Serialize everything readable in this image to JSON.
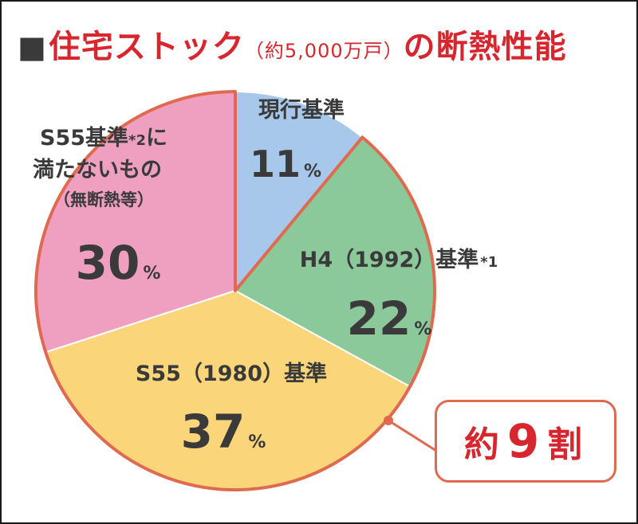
{
  "title": {
    "square": "■",
    "main": "住宅ストック",
    "sub": "（約5,000万戸）",
    "tail": "の断熱性能"
  },
  "chart_data": {
    "type": "pie",
    "title": "住宅ストック（約5,000万戸）の断熱性能",
    "unit": "%",
    "slices": [
      {
        "name": "現行基準",
        "value": 11,
        "color": "#a7c8ea"
      },
      {
        "name": "H4（1992）基準",
        "note": "*1",
        "value": 22,
        "color": "#8cc99a"
      },
      {
        "name": "S55（1980）基準",
        "value": 37,
        "color": "#fad57a"
      },
      {
        "name": "S55基準*2に満たないもの",
        "sub": "（無断熱等）",
        "value": 30,
        "color": "#efa0c1"
      }
    ],
    "outline_color": "#e06a50"
  },
  "labels": {
    "current": {
      "name": "現行基準",
      "value": "11",
      "sign": "%"
    },
    "h4": {
      "name": "H4（1992）基準",
      "note": "*1",
      "value": "22",
      "sign": "%"
    },
    "s55": {
      "name": "S55（1980）基準",
      "value": "37",
      "sign": "%"
    },
    "below": {
      "line1": "S55基準",
      "note": "*2",
      "line1b": "に",
      "line2": "満たないもの",
      "line3": "（無断熱等）",
      "value": "30",
      "sign": "%"
    }
  },
  "callout": {
    "prefix": "約",
    "number": "9",
    "suffix": "割"
  }
}
